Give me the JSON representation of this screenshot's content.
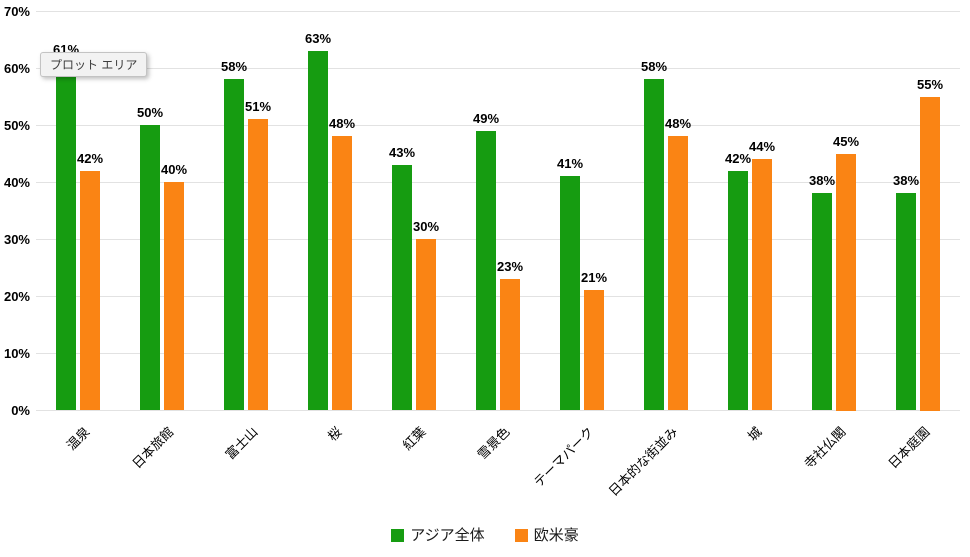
{
  "tooltip": {
    "text": "プロット エリア"
  },
  "chart_data": {
    "type": "bar",
    "title": "",
    "xlabel": "",
    "ylabel": "",
    "categories": [
      "温泉",
      "日本旅館",
      "富士山",
      "桜",
      "紅葉",
      "雪景色",
      "テーマパーク",
      "日本的な街並み",
      "城",
      "寺社仏閣",
      "日本庭園"
    ],
    "series": [
      {
        "name": "アジア全体",
        "color": "#169c11",
        "values": [
          61,
          50,
          58,
          63,
          43,
          49,
          41,
          58,
          42,
          38,
          38
        ]
      },
      {
        "name": "欧米豪",
        "color": "#fa8414",
        "values": [
          42,
          40,
          51,
          48,
          30,
          23,
          21,
          48,
          44,
          45,
          55
        ]
      }
    ],
    "value_suffix": "%",
    "ylim": [
      0,
      70
    ],
    "yticks": [
      0,
      10,
      20,
      30,
      40,
      50,
      60,
      70
    ],
    "ytick_labels": [
      "0%",
      "10%",
      "20%",
      "30%",
      "40%",
      "50%",
      "60%",
      "70%"
    ],
    "grid": true,
    "legend_position": "bottom",
    "data_labels": true
  }
}
